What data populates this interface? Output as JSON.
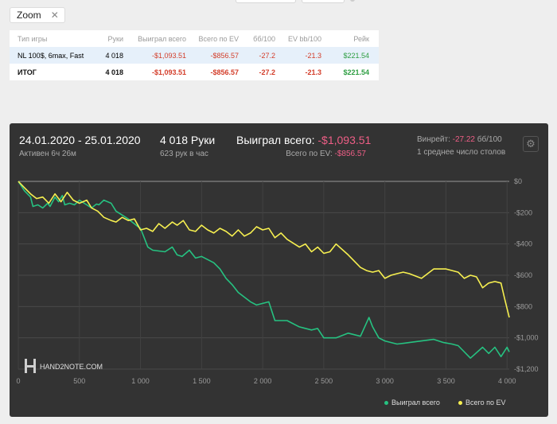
{
  "zoom": {
    "label": "Zoom",
    "close": "✕"
  },
  "table": {
    "headers": [
      "Тип игры",
      "Руки",
      "Выиграл всего",
      "Всего по EV",
      "бб/100",
      "EV bb/100",
      "Рейк"
    ],
    "rows": [
      [
        "NL 100$, 6max, Fast",
        "4 018",
        "-$1,093.51",
        "-$856.57",
        "-27.2",
        "-21.3",
        "$221.54"
      ],
      [
        "ИТОГ",
        "4 018",
        "-$1,093.51",
        "-$856.57",
        "-27.2",
        "-21.3",
        "$221.54"
      ]
    ]
  },
  "panel": {
    "dates": "24.01.2020 - 25.01.2020",
    "active": "Активен 6ч 26м",
    "hands": "4 018 Руки",
    "rate": "623 рук в час",
    "won_label": "Выиграл всего:",
    "won_value": "-$1,093.51",
    "ev_label": "Всего по EV:",
    "ev_value": "-$856.57",
    "winrate_label": "Винрейт:",
    "winrate_value": "-27.22",
    "winrate_unit": "бб/100",
    "tables": "1 среднее число столов",
    "gear_icon": "⚙",
    "logo_text": "HAND2NOTE.COM"
  },
  "legend": {
    "won": "Выиграл всего",
    "ev": "Всего по EV"
  },
  "colors": {
    "won": "#26c281",
    "ev": "#f7f050",
    "negative": "#d33d2a",
    "positive": "#2e9e43",
    "panel": "#333333",
    "accent_pink": "#ee5e86"
  },
  "chart_data": {
    "type": "line",
    "x_ticks": [
      "0",
      "500",
      "1 000",
      "1 500",
      "2 000",
      "2 500",
      "3 000",
      "3 500",
      "4 000"
    ],
    "y_ticks": [
      "$0",
      "-$200",
      "-$400",
      "-$600",
      "-$800",
      "-$1,000",
      "-$1,200"
    ],
    "xlim": [
      0,
      4018
    ],
    "ylim": [
      -1200,
      0
    ],
    "grid": true,
    "legend_position": "bottom-right",
    "series": [
      {
        "name": "Выиграл всего",
        "color": "#26c281",
        "x": [
          0,
          50,
          100,
          120,
          160,
          200,
          240,
          260,
          300,
          330,
          360,
          380,
          420,
          460,
          500,
          560,
          600,
          640,
          660,
          700,
          760,
          800,
          900,
          980,
          1000,
          1060,
          1100,
          1200,
          1260,
          1300,
          1340,
          1400,
          1450,
          1500,
          1550,
          1600,
          1650,
          1700,
          1750,
          1800,
          1900,
          1950,
          2000,
          2050,
          2100,
          2200,
          2300,
          2400,
          2450,
          2500,
          2600,
          2700,
          2800,
          2870,
          2900,
          2950,
          3000,
          3100,
          3200,
          3300,
          3400,
          3480,
          3550,
          3600,
          3700,
          3800,
          3850,
          3900,
          3950,
          4000,
          4018
        ],
        "y": [
          0,
          -60,
          -100,
          -160,
          -150,
          -170,
          -140,
          -160,
          -100,
          -130,
          -90,
          -150,
          -140,
          -150,
          -120,
          -150,
          -170,
          -145,
          -150,
          -120,
          -140,
          -190,
          -240,
          -290,
          -300,
          -420,
          -440,
          -450,
          -420,
          -470,
          -480,
          -440,
          -490,
          -480,
          -500,
          -520,
          -560,
          -620,
          -660,
          -710,
          -770,
          -790,
          -780,
          -770,
          -890,
          -890,
          -930,
          -950,
          -940,
          -1000,
          -1000,
          -970,
          -990,
          -870,
          -930,
          -1000,
          -1020,
          -1040,
          -1030,
          -1020,
          -1010,
          -1030,
          -1040,
          -1050,
          -1130,
          -1060,
          -1100,
          -1060,
          -1120,
          -1060,
          -1090
        ]
      },
      {
        "name": "Всего по EV",
        "color": "#f7f050",
        "x": [
          0,
          50,
          100,
          150,
          200,
          250,
          300,
          350,
          400,
          450,
          500,
          560,
          600,
          650,
          700,
          760,
          800,
          850,
          900,
          950,
          1000,
          1050,
          1100,
          1150,
          1200,
          1260,
          1300,
          1350,
          1400,
          1450,
          1500,
          1550,
          1600,
          1650,
          1700,
          1750,
          1800,
          1850,
          1900,
          1950,
          2000,
          2050,
          2100,
          2150,
          2200,
          2300,
          2350,
          2400,
          2450,
          2500,
          2550,
          2600,
          2700,
          2800,
          2850,
          2900,
          2950,
          3000,
          3050,
          3100,
          3150,
          3200,
          3300,
          3400,
          3500,
          3600,
          3650,
          3700,
          3750,
          3800,
          3850,
          3900,
          3950,
          3980,
          4018
        ],
        "y": [
          0,
          -40,
          -80,
          -110,
          -100,
          -140,
          -80,
          -130,
          -70,
          -120,
          -140,
          -120,
          -170,
          -190,
          -230,
          -250,
          -260,
          -230,
          -250,
          -240,
          -310,
          -300,
          -320,
          -270,
          -300,
          -260,
          -280,
          -250,
          -310,
          -320,
          -280,
          -310,
          -330,
          -300,
          -320,
          -350,
          -310,
          -350,
          -330,
          -290,
          -310,
          -300,
          -360,
          -330,
          -370,
          -420,
          -400,
          -450,
          -420,
          -460,
          -450,
          -400,
          -470,
          -550,
          -570,
          -580,
          -570,
          -620,
          -600,
          -590,
          -580,
          -590,
          -620,
          -560,
          -560,
          -580,
          -620,
          -600,
          -610,
          -680,
          -650,
          -640,
          -650,
          -750,
          -870
        ]
      }
    ]
  }
}
